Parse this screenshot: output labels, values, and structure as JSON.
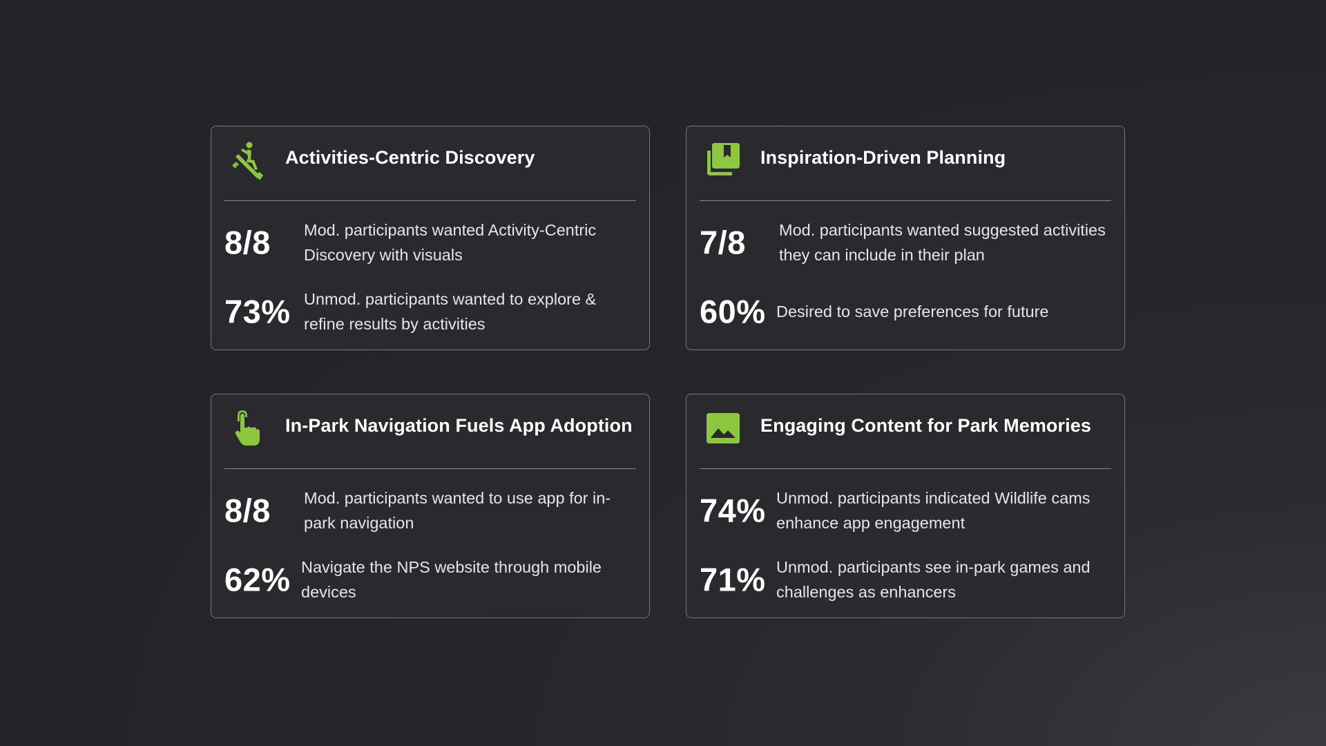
{
  "colors": {
    "accent": "#8dc63f",
    "background": "#242429",
    "card_border": "#76767c",
    "text": "#ffffff"
  },
  "cards": [
    {
      "title": "Activities-Centric Discovery",
      "icon": "person-rowing-icon",
      "stats": [
        {
          "value": "8/8",
          "description": "Mod. participants wanted Activity-Centric Discovery with visuals"
        },
        {
          "value": "73%",
          "description": "Unmod. participants wanted to explore & refine results by activities"
        }
      ]
    },
    {
      "title": "Inspiration-Driven Planning",
      "icon": "bookmark-library-icon",
      "stats": [
        {
          "value": "7/8",
          "description": "Mod. participants wanted suggested activities they can include in their plan"
        },
        {
          "value": "60%",
          "description": "Desired to save preferences for future"
        }
      ]
    },
    {
      "title": "In-Park Navigation Fuels App Adoption",
      "icon": "touch-pointer-icon",
      "stats": [
        {
          "value": "8/8",
          "description": "Mod. participants wanted to use app for in-park navigation"
        },
        {
          "value": "62%",
          "description": "Navigate the NPS website through mobile devices"
        }
      ]
    },
    {
      "title": "Engaging Content for Park Memories",
      "icon": "image-landscape-icon",
      "stats": [
        {
          "value": "74%",
          "description": "Unmod. participants indicated Wildlife cams enhance app engagement"
        },
        {
          "value": "71%",
          "description": "Unmod. participants see in-park games and challenges as enhancers"
        }
      ]
    }
  ]
}
